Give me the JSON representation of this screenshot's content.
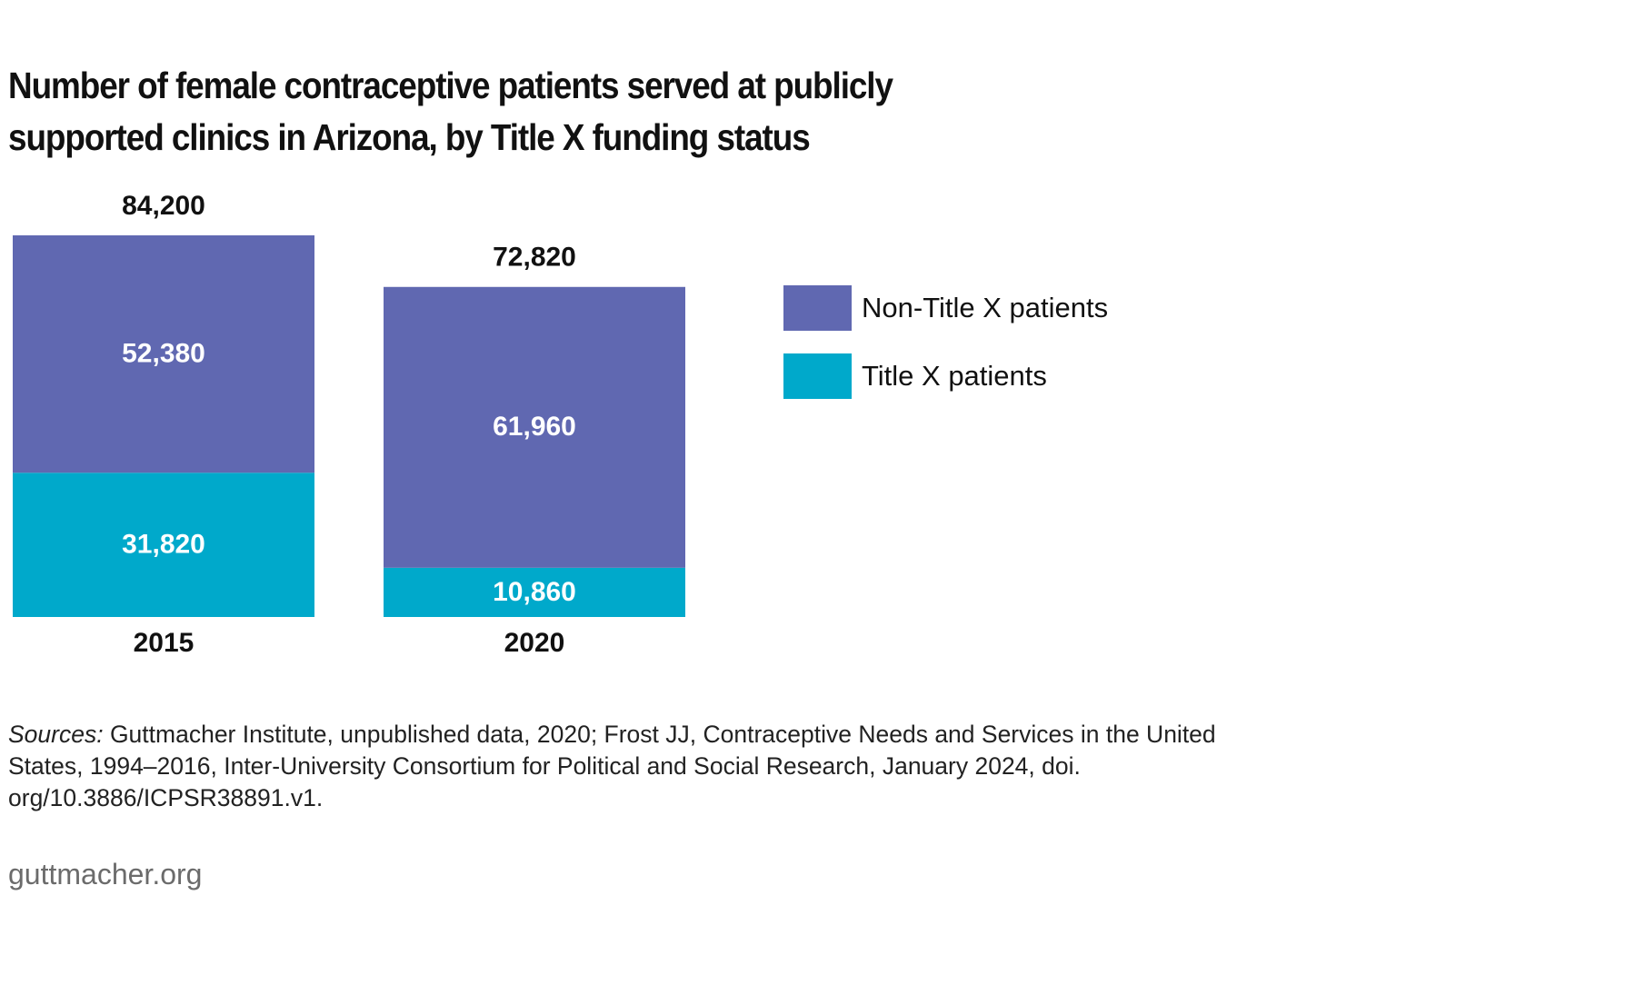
{
  "chart_data": {
    "type": "bar",
    "stacked": true,
    "title": "Number of female contraceptive patients served at publicly supported clinics in Arizona, by Title X funding status",
    "categories": [
      "2015",
      "2020"
    ],
    "series": [
      {
        "name": "Title X patients",
        "color": "#00a9cb",
        "values": [
          31820,
          10860
        ],
        "value_labels": [
          "31,820",
          "10,860"
        ]
      },
      {
        "name": "Non-Title X patients",
        "color": "#6068b1",
        "values": [
          52380,
          61960
        ],
        "value_labels": [
          "52,380",
          "61,960"
        ]
      }
    ],
    "totals": [
      84200,
      72820
    ],
    "total_labels": [
      "84,200",
      "72,820"
    ],
    "ylim": [
      0,
      84200
    ],
    "grid": false,
    "legend_position": "right"
  },
  "legend": {
    "items": [
      {
        "label": "Non-Title X patients",
        "color": "#6068b1"
      },
      {
        "label": "Title X patients",
        "color": "#00a9cb"
      }
    ]
  },
  "footer": {
    "sources_prefix": "Sources:",
    "sources_text": " Guttmacher Institute, unpublished data, 2020; Frost JJ, Contraceptive Needs and Services in the United States, 1994–2016, Inter-University Consortium for Political and Social Research, January 2024, doi. org/10.3886/ICPSR38891.v1.",
    "site": "guttmacher.org"
  }
}
